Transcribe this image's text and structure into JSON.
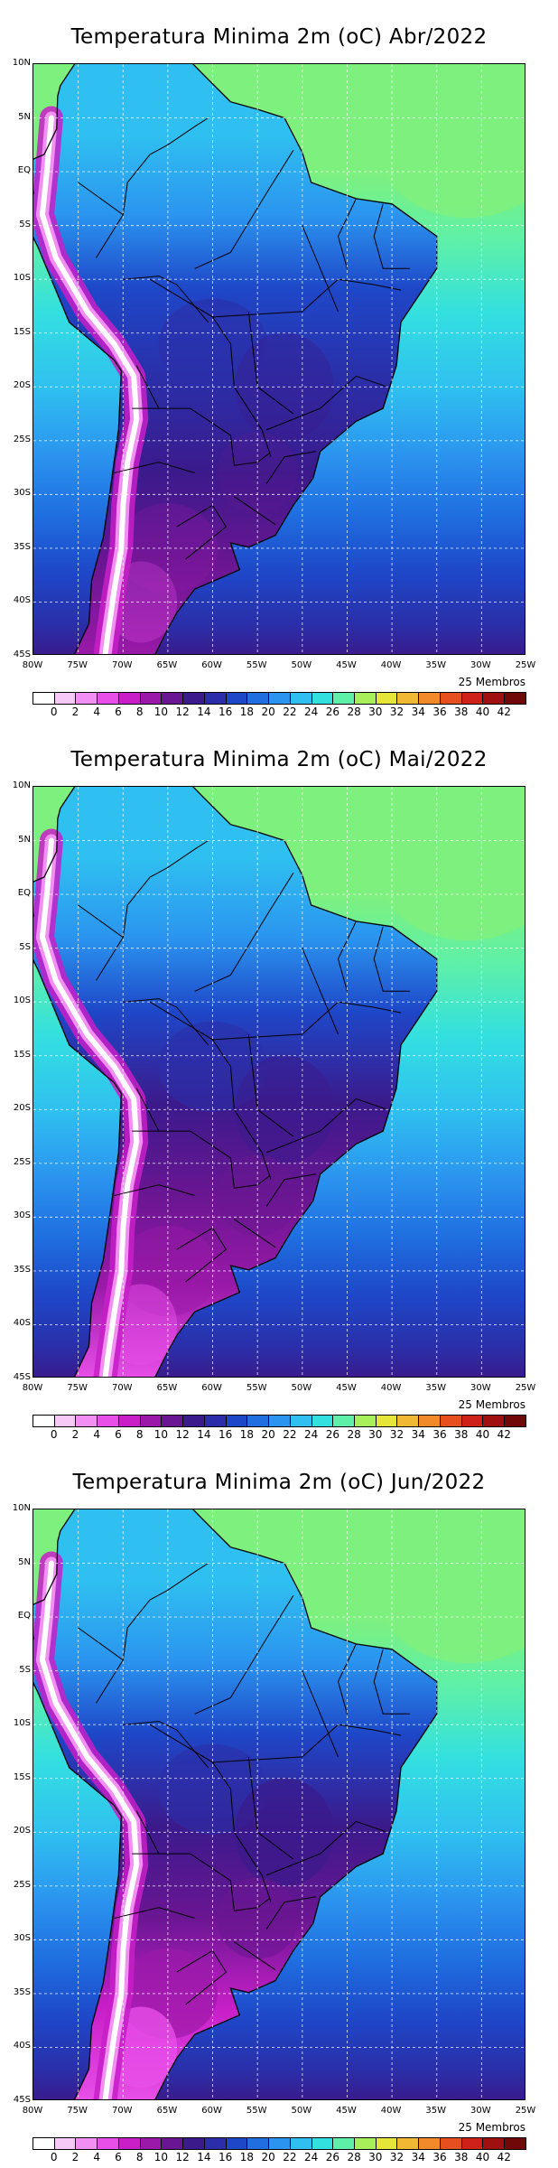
{
  "panels": [
    {
      "title": "Temperatura Minima 2m (oC) Abr/2022",
      "month": "Abr",
      "cold": 0.35
    },
    {
      "title": "Temperatura Minima 2m (oC) Mai/2022",
      "month": "Mai",
      "cold": 0.65
    },
    {
      "title": "Temperatura Minima 2m (oC) Jun/2022",
      "month": "Jun",
      "cold": 1.0
    }
  ],
  "lat_labels": [
    "10N",
    "5N",
    "EQ",
    "5S",
    "10S",
    "15S",
    "20S",
    "25S",
    "30S",
    "35S",
    "40S",
    "45S"
  ],
  "lon_labels": [
    "80W",
    "75W",
    "70W",
    "65W",
    "60W",
    "55W",
    "50W",
    "45W",
    "40W",
    "35W",
    "30W",
    "25W"
  ],
  "members_label": "25 Membros",
  "colorbar": {
    "labels": [
      "0",
      "2",
      "4",
      "6",
      "8",
      "10",
      "12",
      "14",
      "16",
      "18",
      "20",
      "22",
      "24",
      "26",
      "28",
      "30",
      "32",
      "34",
      "36",
      "38",
      "40",
      "42"
    ],
    "colors": [
      "#ffffff",
      "#f6c9f6",
      "#f28ff2",
      "#e84fe8",
      "#c81fc8",
      "#9a19a8",
      "#6a1692",
      "#3b1a8c",
      "#2b2ea8",
      "#1e47c8",
      "#1f6fe0",
      "#2b94ef",
      "#2fbff0",
      "#33e0e0",
      "#5ef0a8",
      "#a8f05a",
      "#e6e63a",
      "#f0b833",
      "#f08a2a",
      "#e6501f",
      "#d0201a",
      "#a01010",
      "#700808"
    ]
  }
}
